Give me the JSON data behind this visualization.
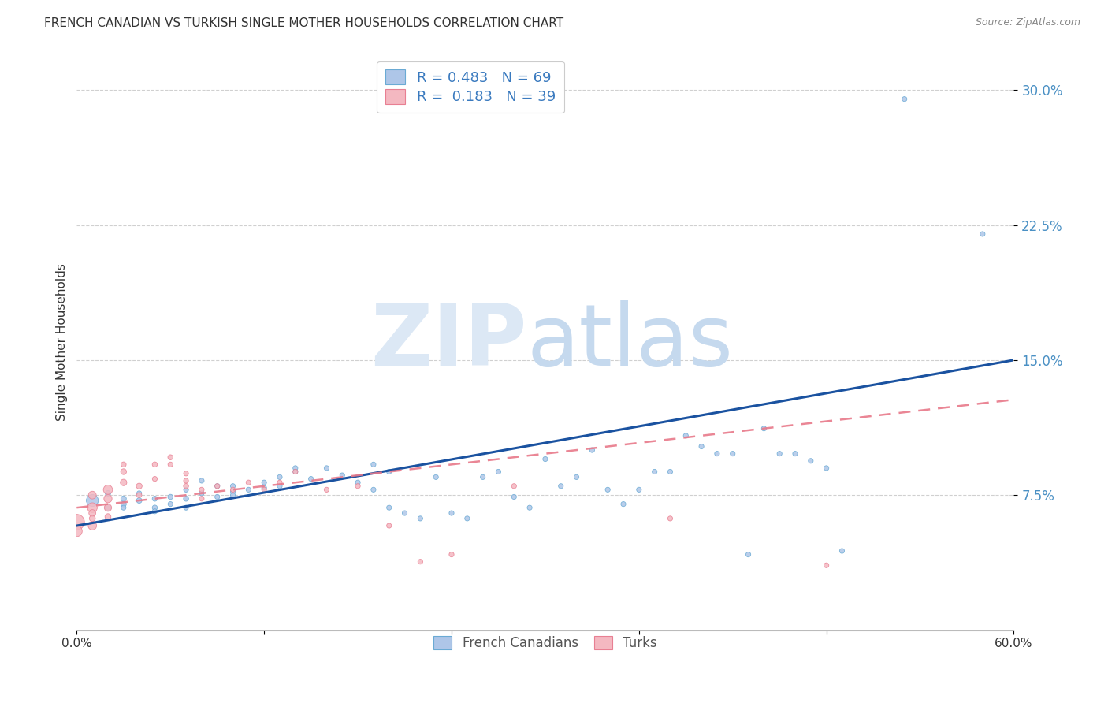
{
  "title": "FRENCH CANADIAN VS TURKISH SINGLE MOTHER HOUSEHOLDS CORRELATION CHART",
  "source": "Source: ZipAtlas.com",
  "ylabel": "Single Mother Households",
  "xlim": [
    0.0,
    0.6
  ],
  "ylim": [
    0.0,
    0.32
  ],
  "yticks": [
    0.075,
    0.15,
    0.225,
    0.3
  ],
  "ytick_labels": [
    "7.5%",
    "15.0%",
    "22.5%",
    "30.0%"
  ],
  "xticks": [
    0.0,
    0.12,
    0.24,
    0.36,
    0.48,
    0.6
  ],
  "xtick_labels": [
    "0.0%",
    "",
    "",
    "",
    "",
    "60.0%"
  ],
  "fc_color": "#aec6e8",
  "fc_edge": "#6aaad4",
  "turk_color": "#f4b8c1",
  "turk_edge": "#e87f92",
  "line_fc_color": "#1a52a0",
  "line_turk_color": "#e8798a",
  "fc_x": [
    0.01,
    0.02,
    0.02,
    0.03,
    0.03,
    0.03,
    0.04,
    0.04,
    0.05,
    0.05,
    0.05,
    0.06,
    0.06,
    0.07,
    0.07,
    0.07,
    0.08,
    0.08,
    0.09,
    0.09,
    0.1,
    0.1,
    0.1,
    0.11,
    0.12,
    0.12,
    0.13,
    0.13,
    0.14,
    0.14,
    0.15,
    0.16,
    0.17,
    0.18,
    0.19,
    0.19,
    0.2,
    0.2,
    0.21,
    0.22,
    0.23,
    0.24,
    0.25,
    0.26,
    0.27,
    0.28,
    0.29,
    0.3,
    0.31,
    0.32,
    0.33,
    0.34,
    0.35,
    0.36,
    0.37,
    0.38,
    0.39,
    0.4,
    0.41,
    0.42,
    0.43,
    0.44,
    0.45,
    0.46,
    0.47,
    0.48,
    0.49,
    0.53,
    0.58
  ],
  "fc_y": [
    0.072,
    0.068,
    0.076,
    0.07,
    0.073,
    0.068,
    0.072,
    0.076,
    0.068,
    0.073,
    0.066,
    0.074,
    0.07,
    0.073,
    0.068,
    0.078,
    0.076,
    0.083,
    0.08,
    0.074,
    0.077,
    0.08,
    0.075,
    0.078,
    0.082,
    0.079,
    0.085,
    0.08,
    0.09,
    0.088,
    0.084,
    0.09,
    0.086,
    0.082,
    0.092,
    0.078,
    0.088,
    0.068,
    0.065,
    0.062,
    0.085,
    0.065,
    0.062,
    0.085,
    0.088,
    0.074,
    0.068,
    0.095,
    0.08,
    0.085,
    0.1,
    0.078,
    0.07,
    0.078,
    0.088,
    0.088,
    0.108,
    0.102,
    0.098,
    0.098,
    0.042,
    0.112,
    0.098,
    0.098,
    0.094,
    0.09,
    0.044,
    0.295,
    0.22
  ],
  "fc_sizes": [
    120,
    30,
    25,
    25,
    25,
    20,
    25,
    20,
    22,
    22,
    20,
    22,
    20,
    22,
    20,
    20,
    20,
    20,
    20,
    20,
    20,
    20,
    20,
    20,
    20,
    20,
    20,
    20,
    20,
    20,
    20,
    20,
    20,
    20,
    20,
    20,
    20,
    20,
    20,
    20,
    20,
    20,
    20,
    20,
    20,
    20,
    20,
    20,
    20,
    20,
    20,
    20,
    20,
    20,
    20,
    20,
    20,
    20,
    20,
    20,
    20,
    20,
    20,
    20,
    20,
    20,
    20,
    20,
    20
  ],
  "turk_x": [
    0.0,
    0.0,
    0.01,
    0.01,
    0.01,
    0.01,
    0.01,
    0.02,
    0.02,
    0.02,
    0.02,
    0.03,
    0.03,
    0.03,
    0.04,
    0.04,
    0.05,
    0.05,
    0.06,
    0.06,
    0.07,
    0.07,
    0.07,
    0.08,
    0.08,
    0.09,
    0.1,
    0.11,
    0.12,
    0.13,
    0.14,
    0.16,
    0.18,
    0.2,
    0.22,
    0.24,
    0.28,
    0.38,
    0.48
  ],
  "turk_y": [
    0.06,
    0.055,
    0.068,
    0.058,
    0.075,
    0.065,
    0.062,
    0.078,
    0.073,
    0.068,
    0.063,
    0.082,
    0.088,
    0.092,
    0.08,
    0.075,
    0.092,
    0.084,
    0.096,
    0.092,
    0.08,
    0.087,
    0.083,
    0.078,
    0.073,
    0.08,
    0.078,
    0.082,
    0.078,
    0.082,
    0.088,
    0.078,
    0.08,
    0.058,
    0.038,
    0.042,
    0.08,
    0.062,
    0.036
  ],
  "turk_sizes": [
    200,
    100,
    80,
    60,
    50,
    40,
    30,
    70,
    55,
    45,
    30,
    35,
    28,
    22,
    28,
    22,
    22,
    20,
    22,
    20,
    22,
    20,
    20,
    20,
    20,
    20,
    20,
    20,
    20,
    20,
    20,
    20,
    20,
    20,
    20,
    20,
    20,
    20,
    20
  ],
  "fc_line_x": [
    0.0,
    0.6
  ],
  "fc_line_y": [
    0.058,
    0.15
  ],
  "turk_line_x": [
    0.0,
    0.6
  ],
  "turk_line_y": [
    0.068,
    0.128
  ],
  "background_color": "#ffffff",
  "grid_color": "#d0d0d0"
}
